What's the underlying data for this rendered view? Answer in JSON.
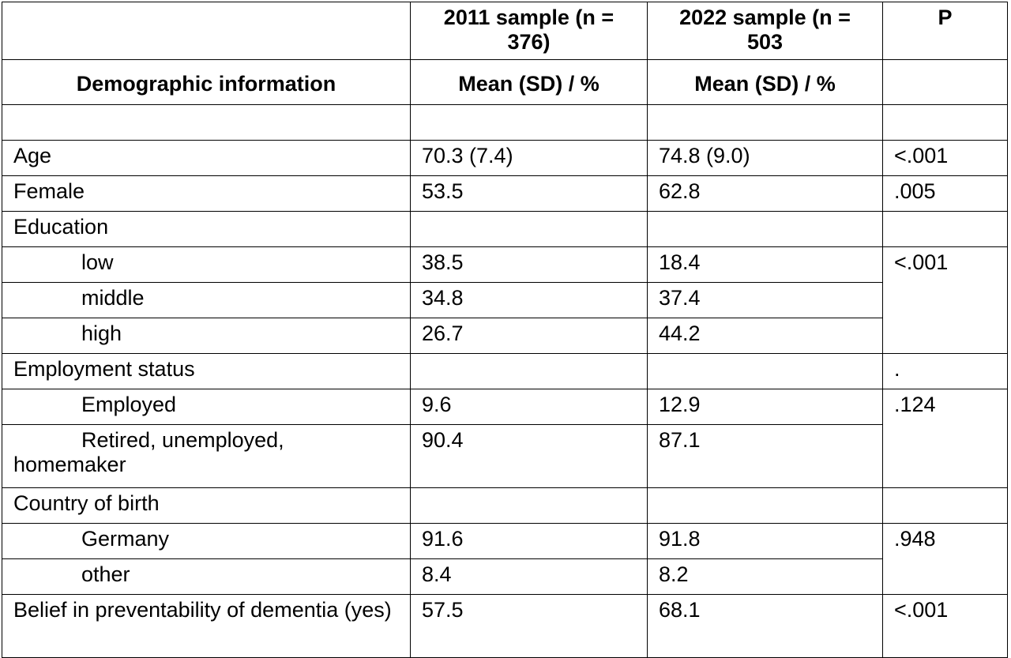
{
  "header": {
    "col1_top": "",
    "col2_top": "2011 sample (n = 376)",
    "col3_top": "2022 sample (n = 503",
    "col4_top": "P",
    "col1_sub": "Demographic information",
    "col2_sub": "Mean (SD) / %",
    "col3_sub": "Mean (SD) / %",
    "col4_sub": ""
  },
  "rows": [
    {
      "label": "Age",
      "v2011": "70.3 (7.4)",
      "v2022": "74.8 (9.0)",
      "p": "<.001"
    },
    {
      "label": "Female",
      "v2011": "53.5",
      "v2022": "62.8",
      "p": ".005"
    },
    {
      "label": "Education",
      "v2011": "",
      "v2022": "",
      "p": ""
    },
    {
      "label": "low",
      "v2011": "38.5",
      "v2022": "18.4",
      "p": "<.001"
    },
    {
      "label": "middle",
      "v2011": "34.8",
      "v2022": "37.4"
    },
    {
      "label": "high",
      "v2011": "26.7",
      "v2022": "44.2"
    },
    {
      "label": "Employment status",
      "v2011": "",
      "v2022": "",
      "p": "."
    },
    {
      "label": "Employed",
      "v2011": "9.6",
      "v2022": "12.9",
      "p": ".124"
    },
    {
      "label": "Retired, unemployed, homemaker",
      "v2011": "90.4",
      "v2022": "87.1"
    },
    {
      "label": "Country of birth",
      "v2011": "",
      "v2022": "",
      "p": ""
    },
    {
      "label": "Germany",
      "v2011": "91.6",
      "v2022": "91.8",
      "p": ".948"
    },
    {
      "label": "other",
      "v2011": "8.4",
      "v2022": "8.2"
    },
    {
      "label": "Belief in preventability of dementia (yes)",
      "v2011": "57.5",
      "v2022": "68.1",
      "p": "<.001"
    }
  ]
}
